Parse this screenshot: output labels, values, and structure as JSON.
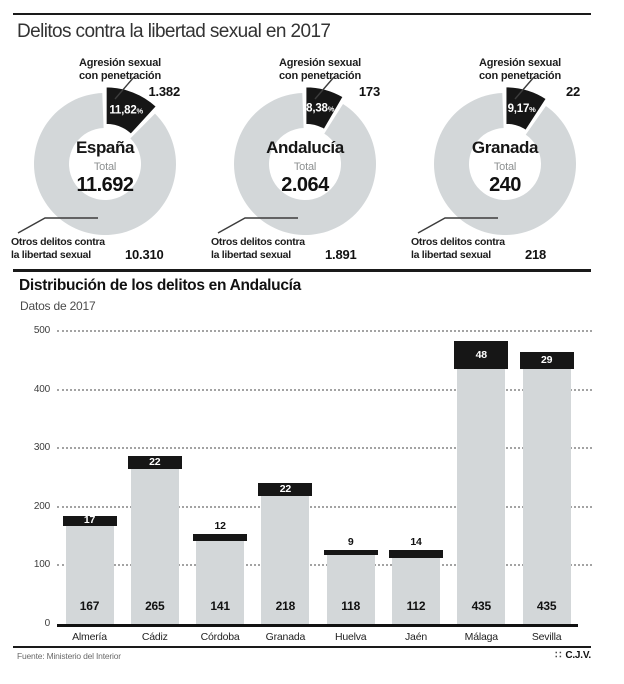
{
  "title": "Delitos contra la libertad sexual en 2017",
  "section2": {
    "title": "Distribución de los delitos en Andalucía",
    "subtitle": "Datos de 2017"
  },
  "footer": {
    "source": "Fuente: Ministerio del Interior",
    "logo": "∷",
    "credit": "C.J.V."
  },
  "colors": {
    "light_gray": "#d3d7d9",
    "black": "#161616",
    "grid_dot": "#a3a3a3",
    "rule": "#1a1a1a",
    "white": "#ffffff"
  },
  "chart_data": [
    {
      "type": "pie",
      "variant": "donut",
      "center": {
        "region": "España",
        "total_label": "Total",
        "total": 11692,
        "total_display": "11.692"
      },
      "slices": [
        {
          "label": "Agresión sexual con penetración",
          "label_lines": [
            "Agresión sexual",
            "con penetración"
          ],
          "value": 1382,
          "display": "1.382",
          "pct": 11.82,
          "pct_display": "11,82%",
          "color": "#161616"
        },
        {
          "label": "Otros delitos contra la libertad sexual",
          "label_lines": [
            "Otros delitos contra",
            "la libertad sexual"
          ],
          "value": 10310,
          "display": "10.310",
          "pct": 88.18,
          "color": "#d3d7d9"
        }
      ]
    },
    {
      "type": "pie",
      "variant": "donut",
      "center": {
        "region": "Andalucía",
        "total_label": "Total",
        "total": 2064,
        "total_display": "2.064"
      },
      "slices": [
        {
          "label": "Agresión sexual con penetración",
          "label_lines": [
            "Agresión sexual",
            "con penetración"
          ],
          "value": 173,
          "display": "173",
          "pct": 8.38,
          "pct_display": "8,38%",
          "color": "#161616"
        },
        {
          "label": "Otros delitos contra la libertad sexual",
          "label_lines": [
            "Otros delitos contra",
            "la libertad sexual"
          ],
          "value": 1891,
          "display": "1.891",
          "pct": 91.62,
          "color": "#d3d7d9"
        }
      ]
    },
    {
      "type": "pie",
      "variant": "donut",
      "center": {
        "region": "Granada",
        "total_label": "Total",
        "total": 240,
        "total_display": "240"
      },
      "slices": [
        {
          "label": "Agresión sexual con penetración",
          "label_lines": [
            "Agresión sexual",
            "con penetración"
          ],
          "value": 22,
          "display": "22",
          "pct": 9.17,
          "pct_display": "9,17%",
          "color": "#161616"
        },
        {
          "label": "Otros delitos contra la libertad sexual",
          "label_lines": [
            "Otros delitos contra",
            "la libertad sexual"
          ],
          "value": 218,
          "display": "218",
          "pct": 90.83,
          "color": "#d3d7d9"
        }
      ]
    },
    {
      "type": "bar",
      "stacked": true,
      "title": "Distribución de los delitos en Andalucía",
      "subtitle": "Datos de 2017",
      "categories": [
        "Almería",
        "Cádiz",
        "Córdoba",
        "Granada",
        "Huelva",
        "Jaén",
        "Málaga",
        "Sevilla"
      ],
      "series": [
        {
          "name": "Otros delitos contra la libertad sexual",
          "color": "#d3d7d9",
          "values": [
            167,
            265,
            141,
            218,
            118,
            112,
            435,
            435
          ]
        },
        {
          "name": "Agresión sexual con penetración",
          "color": "#161616",
          "values": [
            17,
            22,
            12,
            22,
            9,
            14,
            48,
            29
          ]
        }
      ],
      "ylim": [
        0,
        500
      ],
      "yticks": [
        0,
        100,
        200,
        300,
        400,
        500
      ],
      "grid": "dotted-horizontal",
      "xlabel": "",
      "ylabel": ""
    }
  ]
}
